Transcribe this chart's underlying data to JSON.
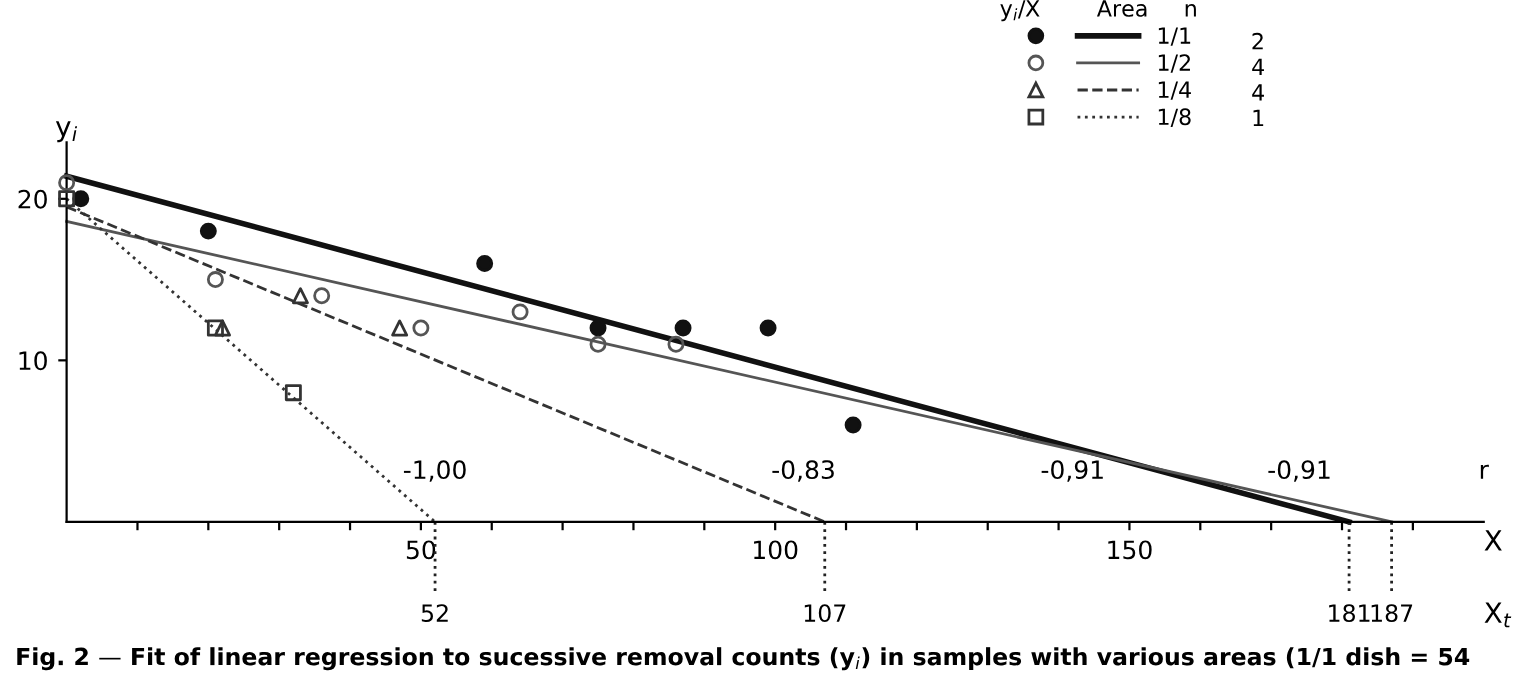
{
  "chart_data": {
    "type": "scatter",
    "xlabel": "X",
    "ylabel": "y$_{i}$",
    "x2label": "X$_{t}$",
    "legend_title": "y$_{i}$/X        Area     n",
    "xlim": [
      0,
      200
    ],
    "ylim": [
      0,
      23.5
    ],
    "xticks": [
      {
        "value": 10,
        "label": null
      },
      {
        "value": 20,
        "label": null
      },
      {
        "value": 30,
        "label": null
      },
      {
        "value": 40,
        "label": null
      },
      50,
      {
        "value": 60,
        "label": null
      },
      {
        "value": 70,
        "label": null
      },
      {
        "value": 80,
        "label": null
      },
      {
        "value": 90,
        "label": null
      },
      100,
      {
        "value": 110,
        "label": null
      },
      {
        "value": 120,
        "label": null
      },
      {
        "value": 130,
        "label": null
      },
      {
        "value": 140,
        "label": null
      },
      150,
      {
        "value": 160,
        "label": null
      },
      {
        "value": 170,
        "label": null
      },
      {
        "value": 180,
        "label": null
      },
      {
        "value": 190,
        "label": null
      }
    ],
    "yticks": [
      10,
      20
    ],
    "x2lim": [
      0,
      200
    ],
    "x2ticks": [
      52,
      107,
      181,
      187
    ],
    "legend": "top right",
    "grid": false,
    "series": [
      {
        "type": "scatter",
        "color": "#111111",
        "marker": "circle",
        "x": [
          2,
          20,
          59,
          75,
          87,
          99,
          111
        ],
        "values": [
          20,
          18,
          16,
          12,
          12,
          12,
          6
        ]
      },
      {
        "type": "scatter",
        "color": "#555555",
        "marker": "circle",
        "x": [
          0,
          21,
          36,
          50,
          64,
          75,
          86
        ],
        "values": [
          21,
          15,
          14,
          12,
          13,
          11,
          11
        ]
      },
      {
        "type": "scatter",
        "color": "#333333",
        "marker": "triangle",
        "x": [
          22,
          33,
          47
        ],
        "values": [
          12,
          14,
          12
        ]
      },
      {
        "type": "scatter",
        "color": "#333333",
        "marker": "square",
        "x": [
          0,
          21,
          32
        ],
        "values": [
          20,
          12,
          8
        ]
      },
      {
        "type": "line",
        "name": "1/1",
        "color": "#111111",
        "line_style": "solid",
        "x": [
          0,
          181
        ],
        "values": [
          21.4,
          0
        ]
      },
      {
        "type": "line",
        "name": "1/2",
        "color": "#555555",
        "line_style": "solid",
        "x": [
          0,
          187
        ],
        "values": [
          18.6,
          0
        ]
      },
      {
        "type": "line",
        "name": "1/4",
        "color": "#333333",
        "line_style": "dashed",
        "x": [
          0,
          107
        ],
        "values": [
          19.5,
          0
        ]
      },
      {
        "type": "line",
        "name": "1/8",
        "color": "#333333",
        "line_style": "dotted",
        "x": [
          0,
          52
        ],
        "values": [
          20,
          0
        ]
      }
    ],
    "annotations": [
      "-1,00",
      "-0,83",
      "-0,91",
      "-0,91",
      "r",
      "2",
      "4",
      "4",
      "1",
      "Fig. 2 — Fit of linear regression to sucessive removal counts (y$_{i}$) in samples with various areas (1/1 dish = 54"
    ]
  }
}
